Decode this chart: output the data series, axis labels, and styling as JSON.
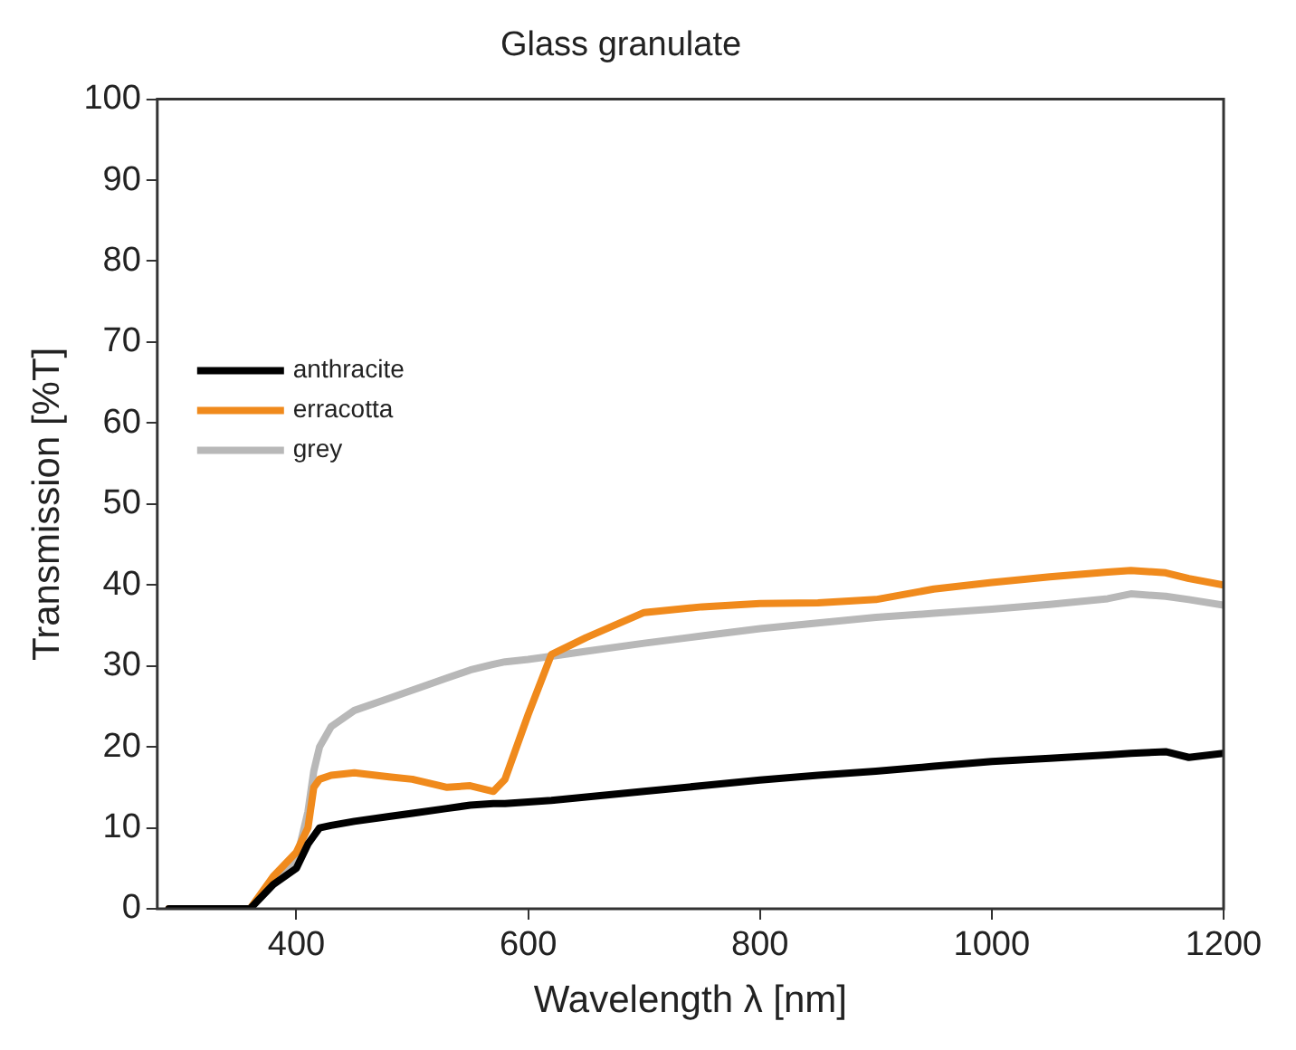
{
  "chart_data": {
    "type": "line",
    "title": "Glass granulate",
    "xlabel": "Wavelength λ [nm]",
    "ylabel": "Transmission [%T]",
    "x": [
      290,
      360,
      380,
      400,
      410,
      415,
      420,
      430,
      450,
      480,
      500,
      530,
      550,
      570,
      580,
      600,
      620,
      650,
      700,
      750,
      800,
      850,
      900,
      950,
      1000,
      1050,
      1100,
      1120,
      1150,
      1170,
      1200
    ],
    "series": [
      {
        "name": "anthracite",
        "color": "#000000",
        "values": [
          0,
          0,
          3,
          5,
          8,
          9,
          10,
          10.3,
          10.8,
          11.4,
          11.8,
          12.4,
          12.8,
          13,
          13,
          13.2,
          13.4,
          13.8,
          14.5,
          15.2,
          15.9,
          16.5,
          17,
          17.6,
          18.2,
          18.6,
          19,
          19.2,
          19.4,
          18.7,
          19.2
        ]
      },
      {
        "name": "erracotta",
        "color": "#f08a1c",
        "values": [
          0,
          0,
          4,
          7,
          10,
          15,
          16,
          16.5,
          16.8,
          16.3,
          16,
          15,
          15.2,
          14.5,
          16,
          24,
          31.4,
          33.5,
          36.6,
          37.3,
          37.7,
          37.8,
          38.2,
          39.5,
          40.3,
          41,
          41.6,
          41.8,
          41.5,
          40.8,
          40
        ]
      },
      {
        "name": "grey",
        "color": "#b8b8b8",
        "values": [
          0,
          0,
          3,
          6,
          12,
          17,
          20,
          22.5,
          24.5,
          26,
          27,
          28.5,
          29.5,
          30.2,
          30.5,
          30.8,
          31.2,
          31.8,
          32.8,
          33.7,
          34.6,
          35.3,
          36,
          36.5,
          37,
          37.6,
          38.3,
          38.9,
          38.6,
          38.2,
          37.5
        ]
      }
    ],
    "xlim": [
      280,
      1200
    ],
    "xticks": [
      400,
      600,
      800,
      1000,
      1200
    ],
    "ylim": [
      0,
      100
    ],
    "yticks": [
      0,
      10,
      20,
      30,
      40,
      50,
      60,
      70,
      80,
      90,
      100
    ],
    "grid": false,
    "legend": "top left",
    "marker": "none",
    "line_style": "solid"
  }
}
